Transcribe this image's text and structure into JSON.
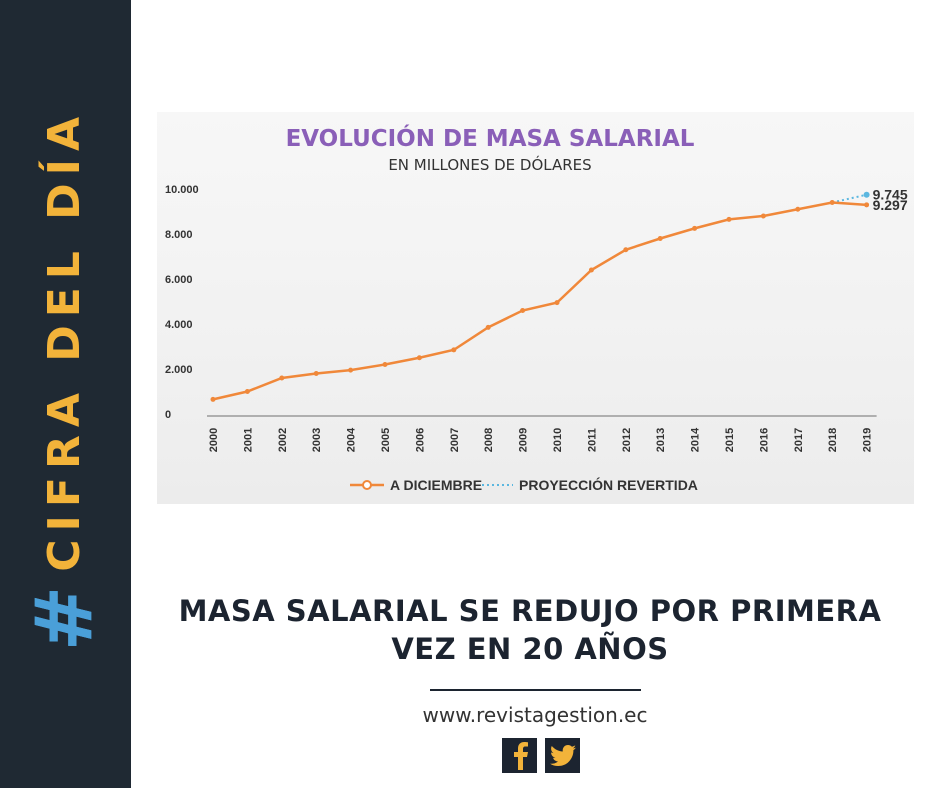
{
  "sidebar": {
    "hash": "#",
    "label": "CIFRA DEL DÍA"
  },
  "headline": "MASA SALARIAL SE REDUJO  POR PRIMERA VEZ EN 20 AÑOS",
  "website": "www.revistagestion.ec",
  "social": [
    "facebook-icon",
    "twitter-icon"
  ],
  "colors": {
    "sidebar": "#1f2933",
    "hash": "#4a9fd8",
    "sidebarText": "#f2b33a",
    "series": "#f0883a",
    "projection": "#5bb7e0",
    "title": "#8a5fb8"
  },
  "chart_data": {
    "type": "line",
    "title": "EVOLUCIÓN DE MASA SALARIAL",
    "subtitle": "EN MILLONES DE DÓLARES",
    "categories": [
      "2000",
      "2001",
      "2002",
      "2003",
      "2004",
      "2005",
      "2006",
      "2007",
      "2008",
      "2009",
      "2010",
      "2011",
      "2012",
      "2013",
      "2014",
      "2015",
      "2016",
      "2017",
      "2018",
      "2019"
    ],
    "yticks": [
      "0",
      "2.000",
      "4.000",
      "6.000",
      "8.000",
      "10.000"
    ],
    "ylim": [
      0,
      10000
    ],
    "series": [
      {
        "name": "A DICIEMBRE",
        "style": "solid-marker",
        "values": [
          650,
          1000,
          1600,
          1800,
          1950,
          2200,
          2500,
          2850,
          3850,
          4600,
          4950,
          6400,
          7300,
          7800,
          8250,
          8650,
          8800,
          9100,
          9400,
          9297
        ]
      },
      {
        "name": "PROYECCIÓN REVERTIDA",
        "style": "dotted",
        "points": [
          [
            "2018",
            9400
          ],
          [
            "2019",
            9745
          ]
        ]
      }
    ],
    "annotations": [
      "9.745",
      "9.297"
    ],
    "grid": false,
    "legend": "bottom"
  }
}
